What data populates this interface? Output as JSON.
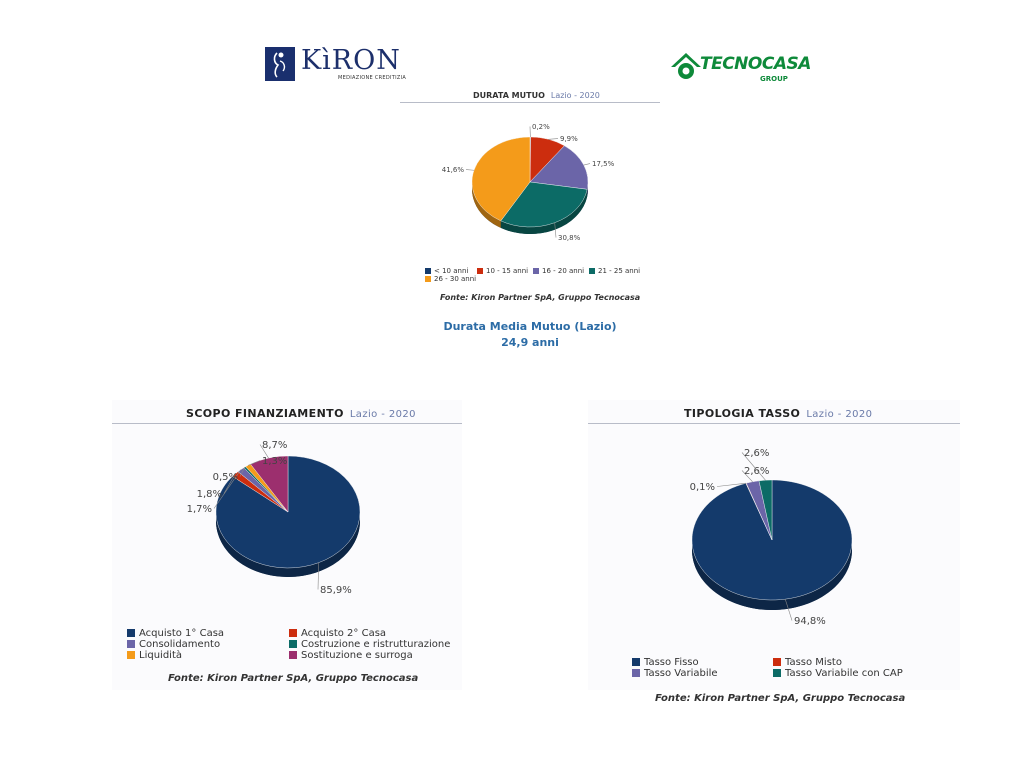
{
  "logos": {
    "kiron": {
      "name": "KìRON",
      "subtitle": "MEDIAZIONE CREDITIZIA",
      "color": "#1c2f6b"
    },
    "tecnocasa": {
      "name": "TECNOCASA",
      "subtitle": "GROUP",
      "color": "#0e8a3a"
    }
  },
  "summary": {
    "line1": "Durata Media Mutuo (Lazio)",
    "line2": "24,9 anni"
  },
  "chart_data": [
    {
      "id": "durata",
      "type": "pie",
      "title": "DURATA MUTUO",
      "subtitle": "Lazio - 2020",
      "source": "Fonte: Kiron Partner SpA, Gruppo Tecnocasa",
      "slices": [
        {
          "label": "< 10 anni",
          "value": 0.2,
          "display": "0,2%",
          "color": "#143a6b"
        },
        {
          "label": "10 - 15 anni",
          "value": 9.9,
          "display": "9,9%",
          "color": "#cc2d0e"
        },
        {
          "label": "16 - 20 anni",
          "value": 17.5,
          "display": "17,5%",
          "color": "#6b65a8"
        },
        {
          "label": "21 - 25 anni",
          "value": 30.8,
          "display": "30,8%",
          "color": "#0c6b66"
        },
        {
          "label": "26 - 30 anni",
          "value": 41.6,
          "display": "41,6%",
          "color": "#f49b1a"
        }
      ]
    },
    {
      "id": "scopo",
      "type": "pie",
      "title": "SCOPO FINANZIAMENTO",
      "subtitle": "Lazio - 2020",
      "source": "Fonte: Kiron Partner SpA, Gruppo Tecnocasa",
      "slices": [
        {
          "label": "Acquisto 1° Casa",
          "value": 85.9,
          "display": "85,9%",
          "color": "#143a6b"
        },
        {
          "label": "Acquisto 2° Casa",
          "value": 1.8,
          "display": "1,8%",
          "color": "#cc2d0e"
        },
        {
          "label": "Consolidamento",
          "value": 1.7,
          "display": "1,7%",
          "color": "#6b65a8"
        },
        {
          "label": "Costruzione e ristrutturazione",
          "value": 0.5,
          "display": "0,5%",
          "color": "#0c6b66"
        },
        {
          "label": "Liquidità",
          "value": 1.3,
          "display": "1,3%",
          "color": "#f49b1a"
        },
        {
          "label": "Sostituzione e surroga",
          "value": 8.7,
          "display": "8,7%",
          "color": "#9c2f6e"
        }
      ]
    },
    {
      "id": "tasso",
      "type": "pie",
      "title": "TIPOLOGIA TASSO",
      "subtitle": "Lazio - 2020",
      "source": "Fonte: Kiron Partner SpA, Gruppo Tecnocasa",
      "slices": [
        {
          "label": "Tasso Fisso",
          "value": 94.8,
          "display": "94,8%",
          "color": "#143a6b"
        },
        {
          "label": "Tasso Misto",
          "value": 0.1,
          "display": "0,1%",
          "color": "#cc2d0e"
        },
        {
          "label": "Tasso Variabile",
          "value": 2.6,
          "display": "2,6%",
          "color": "#6b65a8"
        },
        {
          "label": "Tasso Variabile con CAP",
          "value": 2.6,
          "display": "2,6%",
          "color": "#0c6b66"
        }
      ]
    }
  ]
}
